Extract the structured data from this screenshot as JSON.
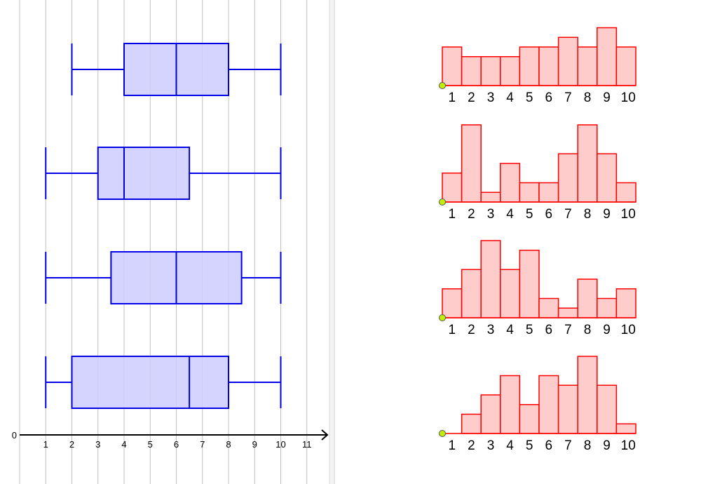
{
  "chart_data": [
    {
      "type": "boxplot",
      "axis": {
        "ticks": [
          "0",
          "1",
          "2",
          "3",
          "4",
          "5",
          "6",
          "7",
          "8",
          "9",
          "10",
          "11"
        ],
        "xlim": [
          0,
          11.8
        ],
        "grid": true
      },
      "colors": {
        "stroke": "#0000e6",
        "fill": "#ccccff",
        "grid": "#c0c0c0"
      },
      "boxes": [
        {
          "min": 2,
          "q1": 4,
          "median": 6,
          "q3": 8,
          "max": 10
        },
        {
          "min": 1,
          "q1": 3,
          "median": 4,
          "q3": 6.5,
          "max": 10
        },
        {
          "min": 1,
          "q1": 3.5,
          "median": 6,
          "q3": 8.5,
          "max": 10
        },
        {
          "min": 1,
          "q1": 2,
          "median": 6.5,
          "q3": 8,
          "max": 10
        }
      ]
    },
    {
      "type": "bar",
      "colors": {
        "stroke": "#ff0000",
        "fill": "#ffcccc",
        "point": "#c0f000"
      },
      "categories": [
        "1",
        "2",
        "3",
        "4",
        "5",
        "6",
        "7",
        "8",
        "9",
        "10"
      ],
      "histograms": [
        {
          "values": [
            4,
            3,
            3,
            3,
            4,
            4,
            5,
            4,
            6,
            4
          ]
        },
        {
          "values": [
            3,
            8,
            1,
            4,
            2,
            2,
            5,
            8,
            5,
            2
          ]
        },
        {
          "values": [
            3,
            5,
            8,
            5,
            7,
            2,
            1,
            4,
            2,
            3
          ]
        },
        {
          "values": [
            0,
            2,
            4,
            6,
            3,
            6,
            5,
            8,
            5,
            1
          ]
        }
      ]
    }
  ]
}
